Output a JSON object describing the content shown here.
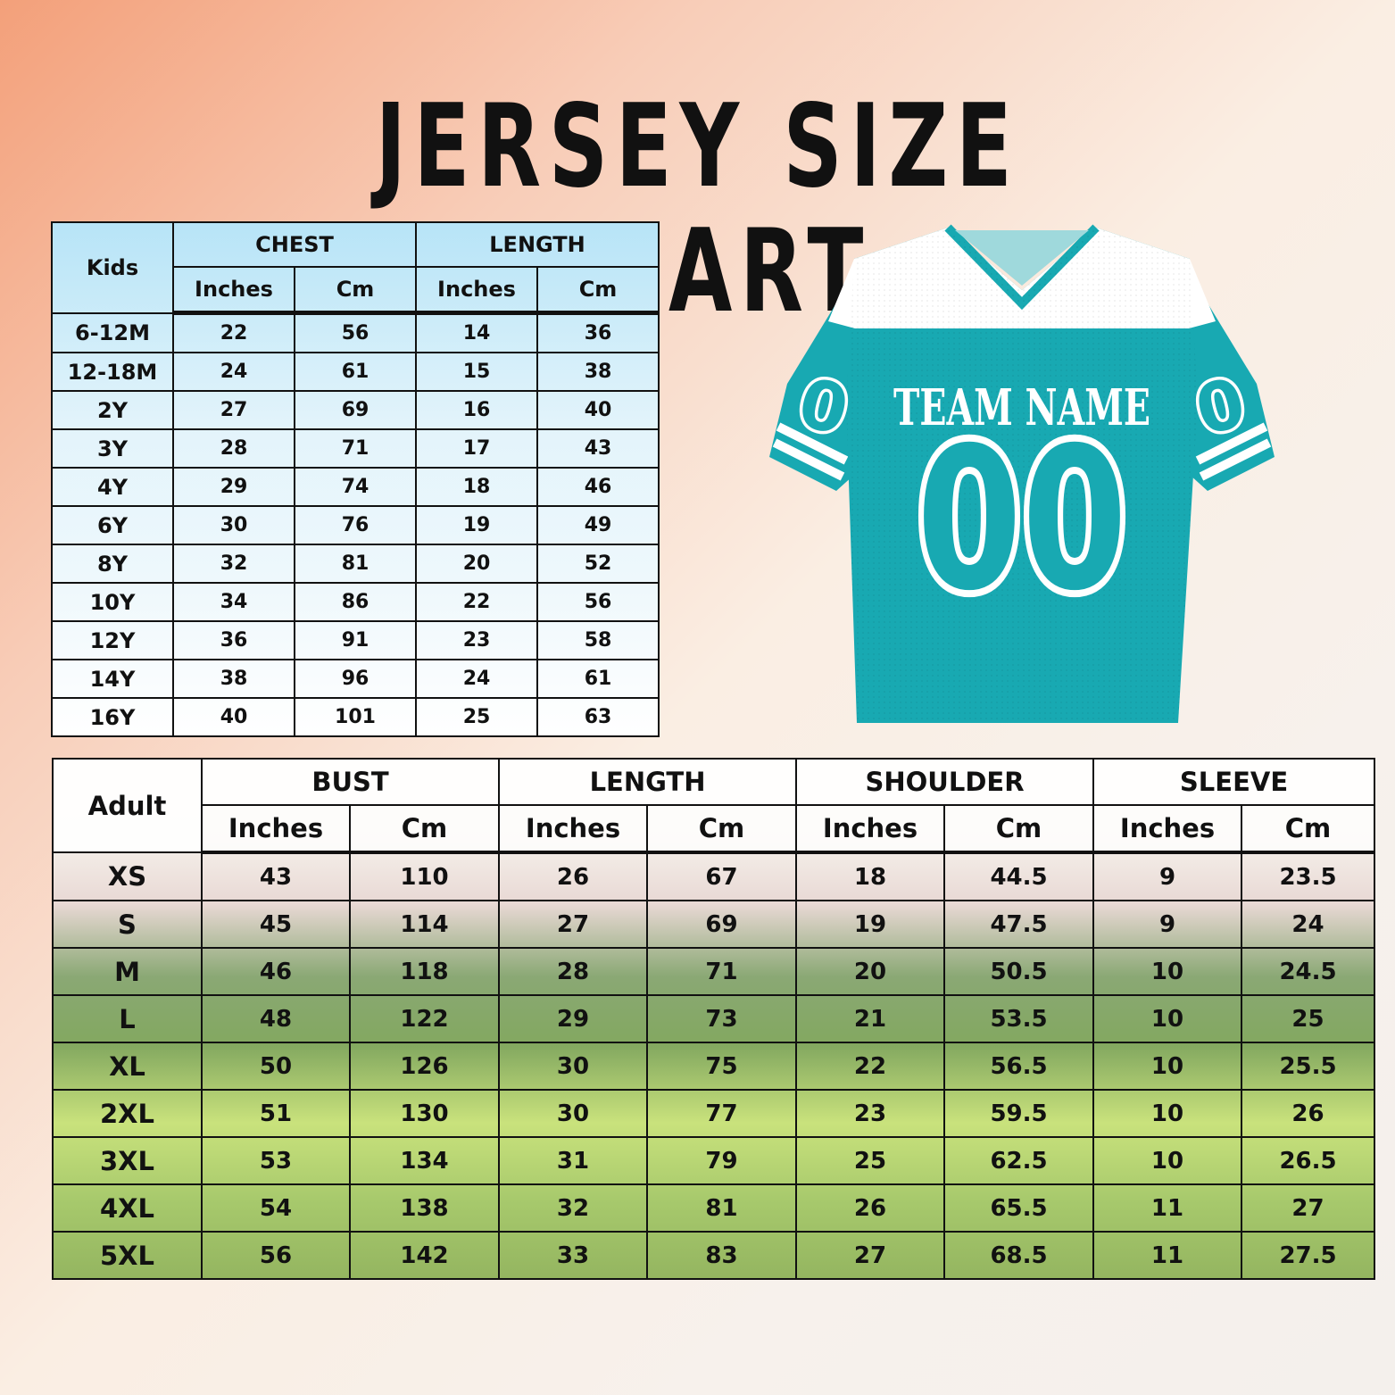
{
  "title": "JERSEY SIZE CHART",
  "kids_table": {
    "corner": "Kids",
    "groups": [
      "CHEST",
      "LENGTH"
    ],
    "subheaders": [
      "Inches",
      "Cm",
      "Inches",
      "Cm"
    ],
    "rows": [
      {
        "size": "6-12M",
        "values": [
          "22",
          "56",
          "14",
          "36"
        ]
      },
      {
        "size": "12-18M",
        "values": [
          "24",
          "61",
          "15",
          "38"
        ]
      },
      {
        "size": "2Y",
        "values": [
          "27",
          "69",
          "16",
          "40"
        ]
      },
      {
        "size": "3Y",
        "values": [
          "28",
          "71",
          "17",
          "43"
        ]
      },
      {
        "size": "4Y",
        "values": [
          "29",
          "74",
          "18",
          "46"
        ]
      },
      {
        "size": "6Y",
        "values": [
          "30",
          "76",
          "19",
          "49"
        ]
      },
      {
        "size": "8Y",
        "values": [
          "32",
          "81",
          "20",
          "52"
        ]
      },
      {
        "size": "10Y",
        "values": [
          "34",
          "86",
          "22",
          "56"
        ]
      },
      {
        "size": "12Y",
        "values": [
          "36",
          "91",
          "23",
          "58"
        ]
      },
      {
        "size": "14Y",
        "values": [
          "38",
          "96",
          "24",
          "61"
        ]
      },
      {
        "size": "16Y",
        "values": [
          "40",
          "101",
          "25",
          "63"
        ]
      }
    ]
  },
  "adult_table": {
    "corner": "Adult",
    "groups": [
      "BUST",
      "LENGTH",
      "SHOULDER",
      "SLEEVE"
    ],
    "subheaders": [
      "Inches",
      "Cm",
      "Inches",
      "Cm",
      "Inches",
      "Cm",
      "Inches",
      "Cm"
    ],
    "rows": [
      {
        "size": "XS",
        "values": [
          "43",
          "110",
          "26",
          "67",
          "18",
          "44.5",
          "9",
          "23.5"
        ]
      },
      {
        "size": "S",
        "values": [
          "45",
          "114",
          "27",
          "69",
          "19",
          "47.5",
          "9",
          "24"
        ]
      },
      {
        "size": "M",
        "values": [
          "46",
          "118",
          "28",
          "71",
          "20",
          "50.5",
          "10",
          "24.5"
        ]
      },
      {
        "size": "L",
        "values": [
          "48",
          "122",
          "29",
          "73",
          "21",
          "53.5",
          "10",
          "25"
        ]
      },
      {
        "size": "XL",
        "values": [
          "50",
          "126",
          "30",
          "75",
          "22",
          "56.5",
          "10",
          "25.5"
        ]
      },
      {
        "size": "2XL",
        "values": [
          "51",
          "130",
          "30",
          "77",
          "23",
          "59.5",
          "10",
          "26"
        ]
      },
      {
        "size": "3XL",
        "values": [
          "53",
          "134",
          "31",
          "79",
          "25",
          "62.5",
          "10",
          "26.5"
        ]
      },
      {
        "size": "4XL",
        "values": [
          "54",
          "138",
          "32",
          "81",
          "26",
          "65.5",
          "11",
          "27"
        ]
      },
      {
        "size": "5XL",
        "values": [
          "56",
          "142",
          "33",
          "83",
          "27",
          "68.5",
          "11",
          "27.5"
        ]
      }
    ]
  },
  "jersey": {
    "team_text": "TEAM NAME",
    "number": "00",
    "sleeve_number": "0",
    "body_color": "#18a9b2",
    "trim_color": "#ffffff"
  }
}
